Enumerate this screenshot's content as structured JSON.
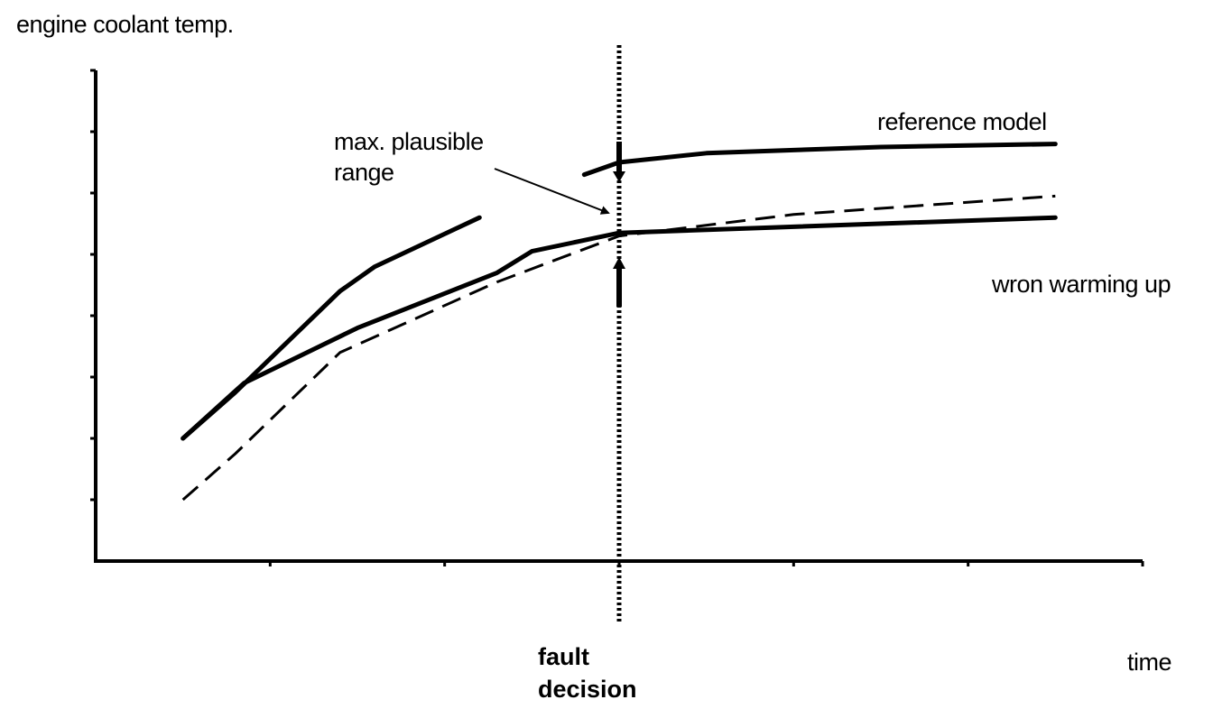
{
  "chart_data": {
    "type": "line",
    "ylabel": "engine coolant temp.",
    "xlabel": "time",
    "grid": false,
    "legend": "none",
    "xlim": [
      0,
      6
    ],
    "ylim": [
      0,
      8
    ],
    "x_ticks": [
      0,
      1,
      2,
      3,
      4,
      5,
      6
    ],
    "y_ticks": [
      0,
      1,
      2,
      3,
      4,
      5,
      6,
      7,
      8
    ],
    "series": [
      {
        "name": "reference model",
        "style": "solid",
        "points": [
          [
            2.8,
            6.3
          ],
          [
            3.0,
            6.5
          ],
          [
            3.5,
            6.65
          ],
          [
            4.5,
            6.75
          ],
          [
            5.5,
            6.8
          ]
        ]
      },
      {
        "name": "max. plausible range",
        "style": "solid",
        "points": [
          [
            0.5,
            2.0
          ],
          [
            0.8,
            2.75
          ],
          [
            1.4,
            4.4
          ],
          [
            1.6,
            4.8
          ],
          [
            2.2,
            5.6
          ]
        ]
      },
      {
        "name": "wron warming up",
        "style": "solid",
        "points": [
          [
            0.5,
            2.0
          ],
          [
            0.85,
            2.9
          ],
          [
            1.5,
            3.8
          ],
          [
            2.3,
            4.7
          ],
          [
            2.5,
            5.05
          ],
          [
            3.0,
            5.35
          ],
          [
            4.0,
            5.45
          ],
          [
            5.5,
            5.6
          ]
        ]
      },
      {
        "style": "dashed",
        "points": [
          [
            0.5,
            1.0
          ],
          [
            0.8,
            1.75
          ],
          [
            1.4,
            3.4
          ],
          [
            2.3,
            4.55
          ],
          [
            3.0,
            5.3
          ],
          [
            4.0,
            5.65
          ],
          [
            5.5,
            5.95
          ]
        ]
      }
    ],
    "annotations": [
      {
        "text": "fault decision",
        "x": 3.0,
        "style": "dotted vertical line",
        "weight": "bold"
      },
      {
        "text": "max. plausible range",
        "style": "arrow label"
      },
      {
        "text": "reference model",
        "style": "label"
      },
      {
        "text": "wron warming up",
        "style": "label"
      }
    ]
  },
  "labels": {
    "y_axis": "engine coolant temp.",
    "x_axis": "time",
    "range_line1": "max. plausible",
    "range_line2": "range",
    "reference": "reference model",
    "wrong": "wron warming up",
    "fault_line1": "fault",
    "fault_line2": "decision"
  }
}
